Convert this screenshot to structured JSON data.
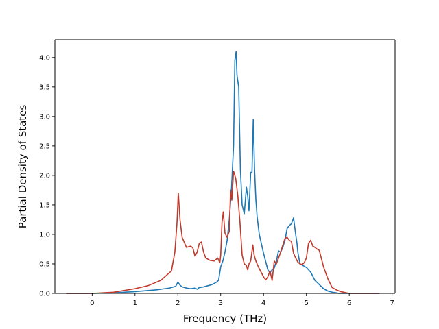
{
  "chart_data": {
    "type": "line",
    "title": "",
    "xlabel": "Frequency (THz)",
    "ylabel": "Partial Density of States",
    "xlim": [
      -0.87,
      7.07
    ],
    "ylim": [
      0,
      4.3
    ],
    "xticks": [
      0,
      1,
      2,
      3,
      4,
      5,
      6,
      7
    ],
    "xtick_labels": [
      "0",
      "1",
      "2",
      "3",
      "4",
      "5",
      "6",
      "7"
    ],
    "yticks": [
      0.0,
      0.5,
      1.0,
      1.5,
      2.0,
      2.5,
      3.0,
      3.5,
      4.0
    ],
    "ytick_labels": [
      "0.0",
      "0.5",
      "1.0",
      "1.5",
      "2.0",
      "2.5",
      "3.0",
      "3.5",
      "4.0"
    ],
    "grid": false,
    "legend": "none",
    "series": [
      {
        "color": "#1f77b4",
        "x": [
          -0.6,
          0.0,
          0.5,
          1.0,
          1.5,
          1.8,
          1.95,
          2.0,
          2.05,
          2.1,
          2.2,
          2.3,
          2.4,
          2.45,
          2.5,
          2.6,
          2.7,
          2.8,
          2.9,
          2.95,
          3.0,
          3.05,
          3.1,
          3.15,
          3.2,
          3.25,
          3.3,
          3.33,
          3.36,
          3.38,
          3.42,
          3.46,
          3.5,
          3.55,
          3.6,
          3.63,
          3.66,
          3.7,
          3.73,
          3.76,
          3.79,
          3.82,
          3.85,
          3.9,
          4.0,
          4.1,
          4.15,
          4.2,
          4.25,
          4.3,
          4.35,
          4.4,
          4.45,
          4.5,
          4.55,
          4.6,
          4.65,
          4.7,
          4.75,
          4.78,
          4.8,
          4.85,
          4.9,
          5.0,
          5.1,
          5.2,
          5.3,
          5.4,
          5.5,
          5.6,
          5.7,
          5.75,
          5.8,
          5.9,
          6.0,
          6.7
        ],
        "values": [
          0.0,
          0.0,
          0.01,
          0.03,
          0.06,
          0.09,
          0.12,
          0.19,
          0.14,
          0.11,
          0.09,
          0.08,
          0.09,
          0.07,
          0.1,
          0.11,
          0.13,
          0.15,
          0.19,
          0.22,
          0.45,
          0.55,
          0.7,
          0.9,
          1.25,
          1.75,
          2.5,
          3.95,
          4.1,
          3.7,
          3.5,
          2.1,
          1.5,
          1.35,
          1.8,
          1.65,
          1.4,
          2.05,
          2.05,
          2.95,
          2.1,
          1.6,
          1.3,
          1.0,
          0.68,
          0.4,
          0.35,
          0.4,
          0.43,
          0.55,
          0.72,
          0.7,
          0.78,
          0.9,
          1.1,
          1.15,
          1.18,
          1.28,
          1.0,
          0.85,
          0.7,
          0.5,
          0.48,
          0.44,
          0.36,
          0.22,
          0.15,
          0.08,
          0.04,
          0.02,
          0.01,
          0.0,
          0.0,
          0.0,
          0.0,
          0.0
        ]
      },
      {
        "color": "#c0392b",
        "x": [
          -0.6,
          0.0,
          0.5,
          1.0,
          1.3,
          1.6,
          1.85,
          1.93,
          1.98,
          2.01,
          2.05,
          2.1,
          2.2,
          2.3,
          2.35,
          2.4,
          2.45,
          2.5,
          2.55,
          2.6,
          2.65,
          2.75,
          2.85,
          2.93,
          2.98,
          3.0,
          3.03,
          3.06,
          3.1,
          3.15,
          3.2,
          3.23,
          3.26,
          3.3,
          3.35,
          3.4,
          3.45,
          3.5,
          3.55,
          3.6,
          3.63,
          3.66,
          3.7,
          3.75,
          3.78,
          3.82,
          3.86,
          3.9,
          4.0,
          4.05,
          4.1,
          4.15,
          4.2,
          4.25,
          4.3,
          4.35,
          4.4,
          4.45,
          4.5,
          4.55,
          4.6,
          4.65,
          4.7,
          4.75,
          4.8,
          4.85,
          4.9,
          4.95,
          5.0,
          5.05,
          5.1,
          5.15,
          5.2,
          5.25,
          5.3,
          5.4,
          5.45,
          5.5,
          5.6,
          5.7,
          5.8,
          6.0,
          6.1,
          6.7
        ],
        "values": [
          0.0,
          0.0,
          0.02,
          0.08,
          0.13,
          0.22,
          0.38,
          0.7,
          1.2,
          1.7,
          1.25,
          0.95,
          0.78,
          0.8,
          0.77,
          0.63,
          0.7,
          0.85,
          0.87,
          0.7,
          0.6,
          0.56,
          0.55,
          0.6,
          0.52,
          0.65,
          1.2,
          1.38,
          1.02,
          0.95,
          1.05,
          1.75,
          1.58,
          2.07,
          1.95,
          1.65,
          1.2,
          0.65,
          0.5,
          0.47,
          0.4,
          0.5,
          0.55,
          0.82,
          0.65,
          0.55,
          0.48,
          0.42,
          0.28,
          0.23,
          0.28,
          0.38,
          0.22,
          0.55,
          0.5,
          0.6,
          0.7,
          0.82,
          0.93,
          0.95,
          0.9,
          0.88,
          0.68,
          0.6,
          0.53,
          0.5,
          0.49,
          0.52,
          0.6,
          0.85,
          0.9,
          0.8,
          0.78,
          0.75,
          0.73,
          0.45,
          0.35,
          0.25,
          0.1,
          0.06,
          0.03,
          0.0,
          0.0,
          0.0
        ]
      }
    ]
  }
}
